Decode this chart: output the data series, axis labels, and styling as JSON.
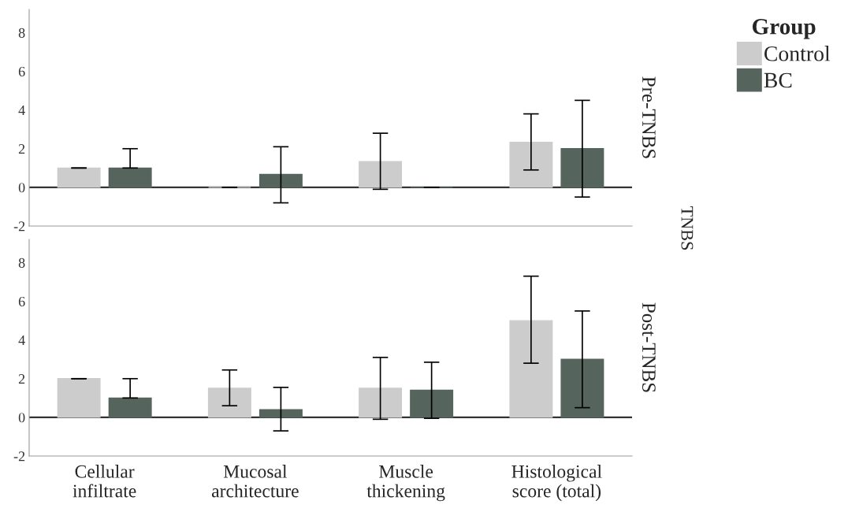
{
  "chart_data": [
    {
      "type": "bar",
      "y2label": "Pre-TNBS",
      "legend_title": "Group",
      "legend": "top right",
      "categories": [
        null,
        null,
        null,
        null
      ],
      "ylim": [
        -2,
        9.2
      ],
      "yticks": [
        -2,
        0,
        2,
        4,
        6,
        8
      ],
      "grid": false,
      "ref_lines": [
        {
          "axis": "y",
          "value": 0,
          "color": "#333333"
        }
      ],
      "annotations": [
        "TNBS"
      ],
      "series": [
        {
          "name": "Control",
          "color": "#cccccc",
          "values": [
            1.0,
            0,
            1.33,
            2.33
          ],
          "errors": [
            [
              1.0,
              1.0
            ],
            [
              0,
              0
            ],
            [
              -0.1,
              2.8
            ],
            [
              0.9,
              3.8
            ]
          ]
        },
        {
          "name": "BC",
          "color": "#56645e",
          "values": [
            1.0,
            0.67,
            0,
            2.0
          ],
          "errors": [
            [
              1.0,
              2.0
            ],
            [
              -0.8,
              2.1
            ],
            [
              0,
              0
            ],
            [
              -0.5,
              4.5
            ]
          ]
        }
      ]
    },
    {
      "type": "bar",
      "y2label": "Post-TNBS",
      "categories": [
        "Cellular infiltrate",
        "Mucosal architecture",
        "Muscle thickening",
        "Histological score (total)"
      ],
      "ylim": [
        -2,
        9.2
      ],
      "yticks": [
        -2,
        0,
        2,
        4,
        6,
        8
      ],
      "grid": false,
      "ref_lines": [
        {
          "axis": "y",
          "value": 0,
          "color": "#333333"
        }
      ],
      "series": [
        {
          "color": "#cccccc",
          "values": [
            2.0,
            1.5,
            1.5,
            5.0
          ],
          "errors": [
            [
              2.0,
              2.0
            ],
            [
              0.6,
              2.45
            ],
            [
              -0.1,
              3.1
            ],
            [
              2.8,
              7.3
            ]
          ]
        },
        {
          "color": "#56645e",
          "values": [
            1.0,
            0.4,
            1.4,
            3.0
          ],
          "errors": [
            [
              1.0,
              2.0
            ],
            [
              -0.7,
              1.55
            ],
            [
              -0.05,
              2.85
            ],
            [
              0.5,
              5.5
            ]
          ]
        }
      ]
    }
  ]
}
